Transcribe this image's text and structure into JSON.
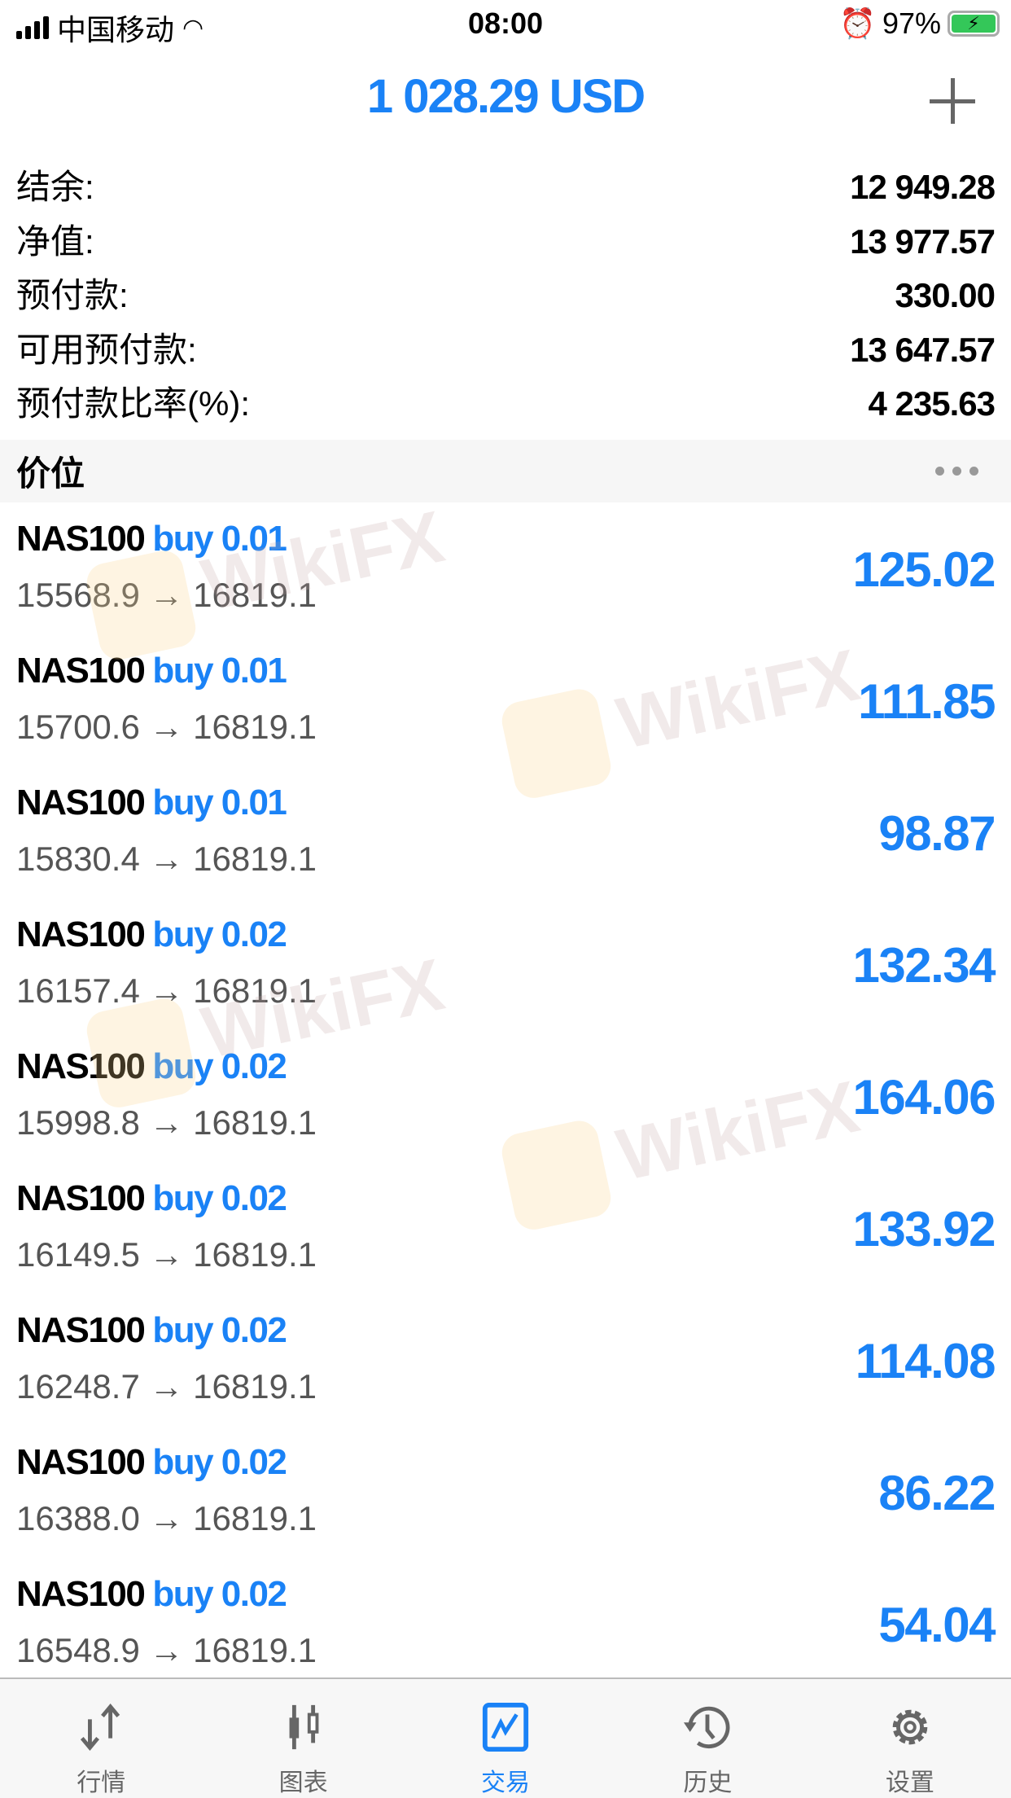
{
  "status": {
    "carrier": "中国移动",
    "time": "08:00",
    "battery": "97%"
  },
  "header": {
    "title": "1 028.29 USD",
    "add_icon": "plus-icon"
  },
  "summary": [
    {
      "label": "结余:",
      "value": "12 949.28"
    },
    {
      "label": "净值:",
      "value": "13 977.57"
    },
    {
      "label": "预付款:",
      "value": "330.00"
    },
    {
      "label": "可用预付款:",
      "value": "13 647.57"
    },
    {
      "label": "预付款比率(%):",
      "value": "4 235.63"
    }
  ],
  "section": {
    "title": "价位",
    "more_icon": "more-dots-icon"
  },
  "positions": [
    {
      "symbol": "NAS100",
      "side": "buy 0.01",
      "prices": "15568.9 → 16819.1",
      "profit": "125.02"
    },
    {
      "symbol": "NAS100",
      "side": "buy 0.01",
      "prices": "15700.6 → 16819.1",
      "profit": "111.85"
    },
    {
      "symbol": "NAS100",
      "side": "buy 0.01",
      "prices": "15830.4 → 16819.1",
      "profit": "98.87"
    },
    {
      "symbol": "NAS100",
      "side": "buy 0.02",
      "prices": "16157.4 → 16819.1",
      "profit": "132.34"
    },
    {
      "symbol": "NAS100",
      "side": "buy 0.02",
      "prices": "15998.8 → 16819.1",
      "profit": "164.06"
    },
    {
      "symbol": "NAS100",
      "side": "buy 0.02",
      "prices": "16149.5 → 16819.1",
      "profit": "133.92"
    },
    {
      "symbol": "NAS100",
      "side": "buy 0.02",
      "prices": "16248.7 → 16819.1",
      "profit": "114.08"
    },
    {
      "symbol": "NAS100",
      "side": "buy 0.02",
      "prices": "16388.0 → 16819.1",
      "profit": "86.22"
    },
    {
      "symbol": "NAS100",
      "side": "buy 0.02",
      "prices": "16548.9 → 16819.1",
      "profit": "54.04"
    }
  ],
  "watermark": "WikiFX",
  "tabs": [
    {
      "label": "行情",
      "icon": "quotes-arrows-icon"
    },
    {
      "label": "图表",
      "icon": "candlestick-chart-icon"
    },
    {
      "label": "交易",
      "icon": "trade-chart-icon",
      "active": true
    },
    {
      "label": "历史",
      "icon": "history-clock-icon"
    },
    {
      "label": "设置",
      "icon": "settings-gear-icon"
    }
  ],
  "colors": {
    "accent": "#1a82f6",
    "text": "#000000",
    "secondary": "#555555"
  }
}
